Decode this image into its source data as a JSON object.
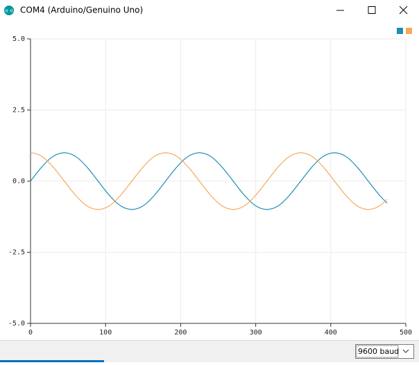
{
  "window": {
    "title": "COM4 (Arduino/Genuino Uno)"
  },
  "chart_data": {
    "type": "line",
    "x": [
      0,
      5,
      10,
      15,
      20,
      25,
      30,
      35,
      40,
      45,
      50,
      55,
      60,
      65,
      70,
      75,
      80,
      85,
      90,
      95,
      100,
      105,
      110,
      115,
      120,
      125,
      130,
      135,
      140,
      145,
      150,
      155,
      160,
      165,
      170,
      175,
      180,
      185,
      190,
      195,
      200,
      205,
      210,
      215,
      220,
      225,
      230,
      235,
      240,
      245,
      250,
      255,
      260,
      265,
      270,
      275,
      280,
      285,
      290,
      295,
      300,
      305,
      310,
      315,
      320,
      325,
      330,
      335,
      340,
      345,
      350,
      355,
      360,
      365,
      370,
      375,
      380,
      385,
      390,
      395,
      400,
      405,
      410,
      415,
      420,
      425,
      430,
      435,
      440,
      445,
      450,
      455,
      460,
      465,
      470,
      475
    ],
    "series": [
      {
        "color": "#1f8db3",
        "values": [
          0,
          0.17,
          0.34,
          0.5,
          0.64,
          0.77,
          0.87,
          0.94,
          0.98,
          1,
          0.98,
          0.94,
          0.87,
          0.77,
          0.64,
          0.5,
          0.34,
          0.17,
          0,
          -0.17,
          -0.34,
          -0.5,
          -0.64,
          -0.77,
          -0.87,
          -0.94,
          -0.98,
          -1,
          -0.98,
          -0.94,
          -0.87,
          -0.77,
          -0.64,
          -0.5,
          -0.34,
          -0.17,
          0,
          0.17,
          0.34,
          0.5,
          0.64,
          0.77,
          0.87,
          0.94,
          0.98,
          1,
          0.98,
          0.94,
          0.87,
          0.77,
          0.64,
          0.5,
          0.34,
          0.17,
          0,
          -0.17,
          -0.34,
          -0.5,
          -0.64,
          -0.77,
          -0.87,
          -0.94,
          -0.98,
          -1,
          -0.98,
          -0.94,
          -0.87,
          -0.77,
          -0.64,
          -0.5,
          -0.34,
          -0.17,
          0,
          0.17,
          0.34,
          0.5,
          0.64,
          0.77,
          0.87,
          0.94,
          0.98,
          1,
          0.98,
          0.94,
          0.87,
          0.77,
          0.64,
          0.5,
          0.34,
          0.17,
          0,
          -0.17,
          -0.34,
          -0.5,
          -0.64,
          -0.77
        ]
      },
      {
        "color": "#f6a95b",
        "values": [
          1,
          0.98,
          0.94,
          0.87,
          0.77,
          0.64,
          0.5,
          0.34,
          0.17,
          0,
          -0.17,
          -0.34,
          -0.5,
          -0.64,
          -0.77,
          -0.87,
          -0.94,
          -0.98,
          -1,
          -0.98,
          -0.94,
          -0.87,
          -0.77,
          -0.64,
          -0.5,
          -0.34,
          -0.17,
          0,
          0.17,
          0.34,
          0.5,
          0.64,
          0.77,
          0.87,
          0.94,
          0.98,
          1,
          0.98,
          0.94,
          0.87,
          0.77,
          0.64,
          0.5,
          0.34,
          0.17,
          0,
          -0.17,
          -0.34,
          -0.5,
          -0.64,
          -0.77,
          -0.87,
          -0.94,
          -0.98,
          -1,
          -0.98,
          -0.94,
          -0.87,
          -0.77,
          -0.64,
          -0.5,
          -0.34,
          -0.17,
          0,
          0.17,
          0.34,
          0.5,
          0.64,
          0.77,
          0.87,
          0.94,
          0.98,
          1,
          0.98,
          0.94,
          0.87,
          0.77,
          0.64,
          0.5,
          0.34,
          0.17,
          0,
          -0.17,
          -0.34,
          -0.5,
          -0.64,
          -0.77,
          -0.87,
          -0.94,
          -0.98,
          -1,
          -0.98,
          -0.94,
          -0.87,
          -0.77,
          -0.64
        ]
      }
    ],
    "xlim": [
      0,
      500
    ],
    "xticks": [
      0,
      100,
      200,
      300,
      400,
      500
    ],
    "ylim": [
      -5,
      5
    ],
    "yticks": [
      {
        "value": -5,
        "label": "-5.0"
      },
      {
        "value": -2.5,
        "label": "-2.5"
      },
      {
        "value": 0,
        "label": "0.0"
      },
      {
        "value": 2.5,
        "label": "2.5"
      },
      {
        "value": 5,
        "label": "5.0"
      }
    ],
    "grid": true
  },
  "footer": {
    "baud": "9600 baud"
  }
}
